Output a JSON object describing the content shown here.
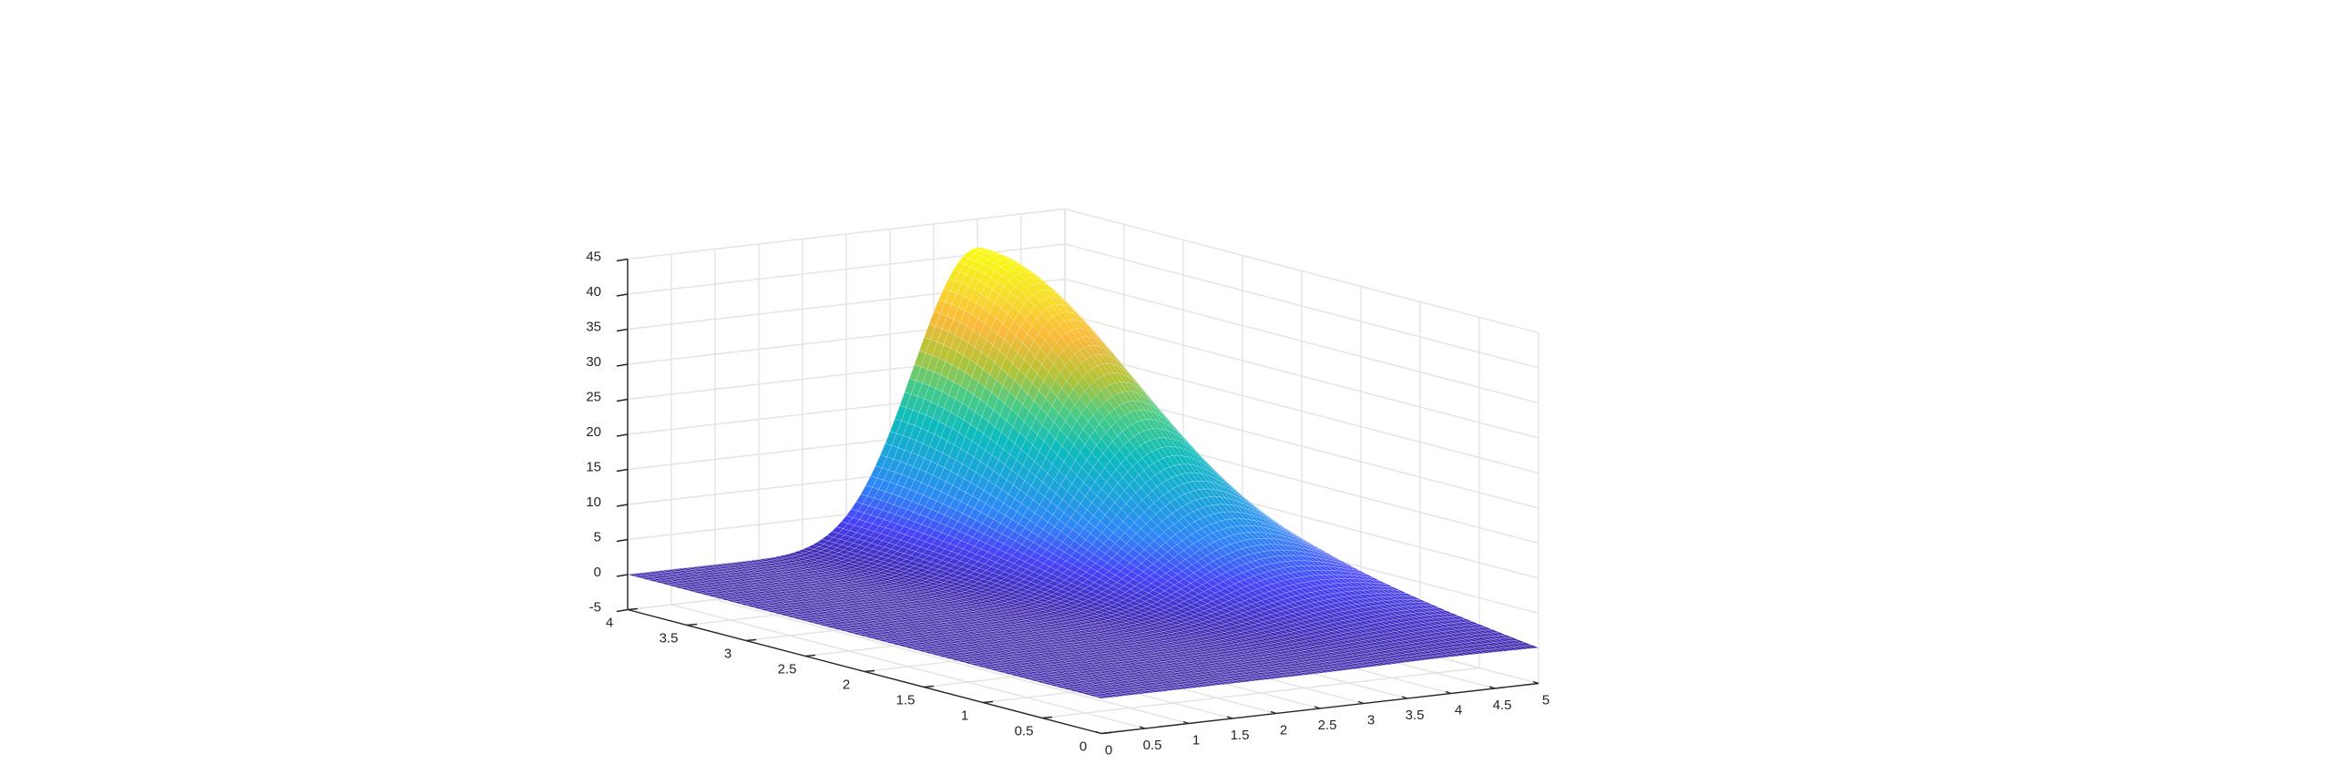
{
  "chart_data": {
    "type": "surface",
    "title": "",
    "xlabel": "",
    "ylabel": "",
    "zlabel": "",
    "x": {
      "lim": [
        0,
        5
      ],
      "ticks": [
        0,
        0.5,
        1,
        1.5,
        2,
        2.5,
        3,
        3.5,
        4,
        4.5,
        5
      ],
      "tick_labels": [
        "0",
        "0.5",
        "1",
        "1.5",
        "2",
        "2.5",
        "3",
        "3.5",
        "4",
        "4.5",
        "5"
      ]
    },
    "y": {
      "lim": [
        0,
        4
      ],
      "ticks": [
        0,
        0.5,
        1,
        1.5,
        2,
        2.5,
        3,
        3.5,
        4
      ],
      "tick_labels": [
        "0",
        "0.5",
        "1",
        "1.5",
        "2",
        "2.5",
        "3",
        "3.5",
        "4"
      ]
    },
    "z": {
      "lim": [
        -5,
        45
      ],
      "ticks": [
        -5,
        0,
        5,
        10,
        15,
        20,
        25,
        30,
        35,
        40,
        45
      ],
      "tick_labels": [
        "-5",
        "0",
        "5",
        "10",
        "15",
        "20",
        "25",
        "30",
        "35",
        "40",
        "45"
      ]
    },
    "grid": true,
    "colormap": "parula",
    "colormap_colors": [
      "#3e26a8",
      "#4743f8",
      "#2e87f7",
      "#1ba5da",
      "#0dbbbd",
      "#48cb86",
      "#b6c335",
      "#fbb93b",
      "#f6de2a",
      "#f9fb0e"
    ],
    "surface": {
      "x_range": [
        0,
        5
      ],
      "y_range": [
        0,
        4
      ],
      "samples": [
        {
          "x": 0,
          "y": 0,
          "z": 0
        },
        {
          "x": 2.5,
          "y": 0,
          "z": 0
        },
        {
          "x": 5,
          "y": 0,
          "z": 0
        },
        {
          "x": 0,
          "y": 4,
          "z": 0
        },
        {
          "x": 2.5,
          "y": 4,
          "z": 0
        },
        {
          "x": 5,
          "y": 2,
          "z": 19
        },
        {
          "x": 5,
          "y": 4,
          "z": 0
        },
        {
          "x": 4,
          "y": 4,
          "z": 41
        },
        {
          "x": 3.5,
          "y": 4,
          "z": 33
        },
        {
          "x": 3,
          "y": 4,
          "z": 23
        },
        {
          "x": 3,
          "y": 2,
          "z": 10
        }
      ],
      "peak": {
        "x": 4,
        "y": 4,
        "z": 41
      }
    }
  }
}
